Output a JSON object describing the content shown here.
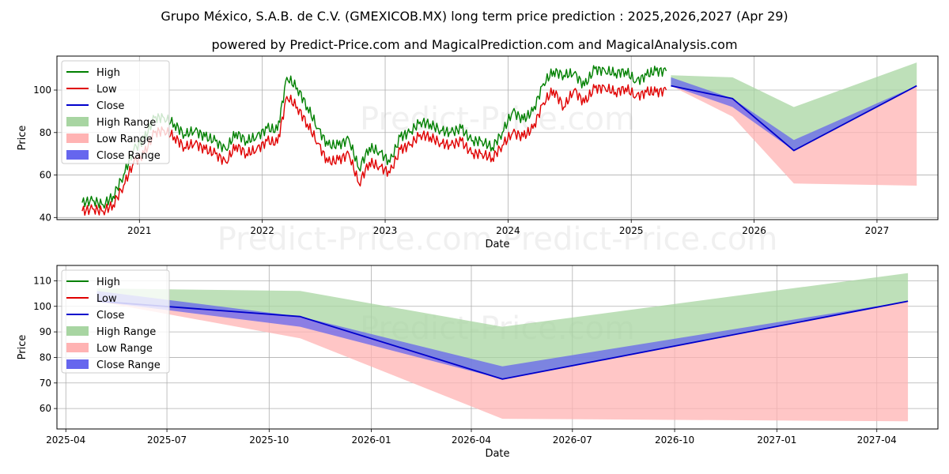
{
  "title_line1": "Grupo México, S.A.B. de C.V. (GMEXICOB.MX) long term price prediction : 2025,2026,2027 (Apr 29)",
  "title_line2": "powered by Predict-Price.com and MagicalPrediction.com and MagicalAnalysis.com",
  "watermark": "Predict-Price.com",
  "colors": {
    "high": "#008000",
    "low": "#e00000",
    "close": "#0000cc",
    "high_range": "#a8d5a2",
    "low_range": "#ffb3b3",
    "close_range": "#6666ee",
    "grid": "#b0b0b0"
  },
  "legend_labels": [
    "High",
    "Low",
    "Close",
    "High Range",
    "Low Range",
    "Close Range"
  ],
  "chart_data": [
    {
      "type": "line",
      "xlabel": "Date",
      "ylabel": "Price",
      "xlim": [
        "2020-05-01",
        "2027-07-01"
      ],
      "ylim": [
        39,
        116
      ],
      "x_ticks": [
        "2021",
        "2022",
        "2023",
        "2024",
        "2025",
        "2026",
        "2027"
      ],
      "y_ticks": [
        40,
        60,
        80,
        100
      ],
      "grid": true,
      "legend_position": "top-left",
      "history": {
        "dates": [
          "2020-07-15",
          "2020-08-15",
          "2020-09-15",
          "2020-10-15",
          "2020-11-15",
          "2020-12-15",
          "2021-01-15",
          "2021-02-15",
          "2021-03-15",
          "2021-04-15",
          "2021-05-15",
          "2021-06-15",
          "2021-07-15",
          "2021-08-15",
          "2021-09-15",
          "2021-10-15",
          "2021-11-15",
          "2021-12-15",
          "2022-01-15",
          "2022-02-15",
          "2022-03-15",
          "2022-04-15",
          "2022-05-15",
          "2022-06-15",
          "2022-07-15",
          "2022-08-15",
          "2022-09-15",
          "2022-10-15",
          "2022-11-15",
          "2022-12-15",
          "2023-01-15",
          "2023-02-15",
          "2023-03-15",
          "2023-04-15",
          "2023-05-15",
          "2023-06-15",
          "2023-07-15",
          "2023-08-15",
          "2023-09-15",
          "2023-10-15",
          "2023-11-15",
          "2023-12-15",
          "2024-01-15",
          "2024-02-15",
          "2024-03-15",
          "2024-04-15",
          "2024-05-15",
          "2024-06-15",
          "2024-07-15",
          "2024-08-15",
          "2024-09-15",
          "2024-10-15",
          "2024-11-15",
          "2024-12-15",
          "2025-01-15",
          "2025-02-15",
          "2025-03-15",
          "2025-04-15"
        ],
        "high": [
          47,
          48,
          46,
          50,
          60,
          72,
          77,
          87,
          87,
          84,
          79,
          81,
          78,
          76,
          72,
          80,
          76,
          78,
          82,
          81,
          106,
          101,
          92,
          82,
          74,
          74,
          77,
          63,
          73,
          71,
          66,
          78,
          80,
          85,
          84,
          81,
          80,
          82,
          76,
          76,
          73,
          80,
          90,
          86,
          90,
          103,
          109,
          107,
          108,
          102,
          110,
          109,
          108,
          109,
          104,
          107,
          109,
          109
        ],
        "low": [
          43,
          44,
          43,
          46,
          55,
          66,
          70,
          80,
          81,
          78,
          73,
          75,
          72,
          70,
          66,
          74,
          70,
          72,
          76,
          75,
          97,
          92,
          84,
          75,
          66,
          67,
          70,
          56,
          66,
          64,
          61,
          72,
          74,
          79,
          78,
          75,
          74,
          76,
          70,
          70,
          68,
          74,
          80,
          78,
          82,
          94,
          100,
          92,
          100,
          94,
          101,
          101,
          99,
          101,
          97,
          99,
          99,
          100
        ],
        "close": [
          45,
          46,
          45,
          48,
          57,
          69,
          73,
          83,
          84,
          81,
          76,
          78,
          75,
          73,
          69,
          77,
          73,
          75,
          79,
          78,
          101,
          96,
          88,
          78,
          70,
          70,
          73,
          59,
          69,
          67,
          63,
          75,
          77,
          82,
          81,
          78,
          77,
          79,
          73,
          73,
          70,
          77,
          85,
          82,
          86,
          98,
          104,
          99,
          104,
          98,
          105,
          105,
          103,
          105,
          100,
          103,
          104,
          104
        ]
      },
      "forecast": {
        "dates": [
          "2025-04-29",
          "2025-10-29",
          "2026-04-29",
          "2027-04-29"
        ],
        "close": [
          102,
          96,
          71.5,
          102
        ],
        "high_range_upper": [
          107,
          106,
          92,
          113
        ],
        "low_range_lower": [
          102,
          87.5,
          56,
          55
        ],
        "close_range_upper": [
          106,
          96,
          76.5,
          102
        ],
        "close_range_lower": [
          102,
          92,
          71.5,
          102
        ]
      }
    },
    {
      "type": "line",
      "xlabel": "Date",
      "ylabel": "Price",
      "xlim": [
        "2025-03-24",
        "2027-05-26"
      ],
      "ylim": [
        52,
        116
      ],
      "x_ticks": [
        "2025-04",
        "2025-07",
        "2025-10",
        "2026-01",
        "2026-04",
        "2026-07",
        "2026-10",
        "2027-01",
        "2027-04"
      ],
      "y_ticks": [
        60,
        70,
        80,
        90,
        100,
        110
      ],
      "grid": true,
      "legend_position": "top-left",
      "forecast": {
        "dates": [
          "2025-04-29",
          "2025-10-29",
          "2026-04-29",
          "2027-04-29"
        ],
        "close": [
          102,
          96,
          71.5,
          102
        ],
        "high_range_upper": [
          107,
          106,
          92,
          113
        ],
        "low_range_lower": [
          102,
          87.5,
          56,
          55
        ],
        "close_range_upper": [
          106,
          96,
          76.5,
          102
        ],
        "close_range_lower": [
          102,
          92,
          71.5,
          102
        ]
      }
    }
  ]
}
